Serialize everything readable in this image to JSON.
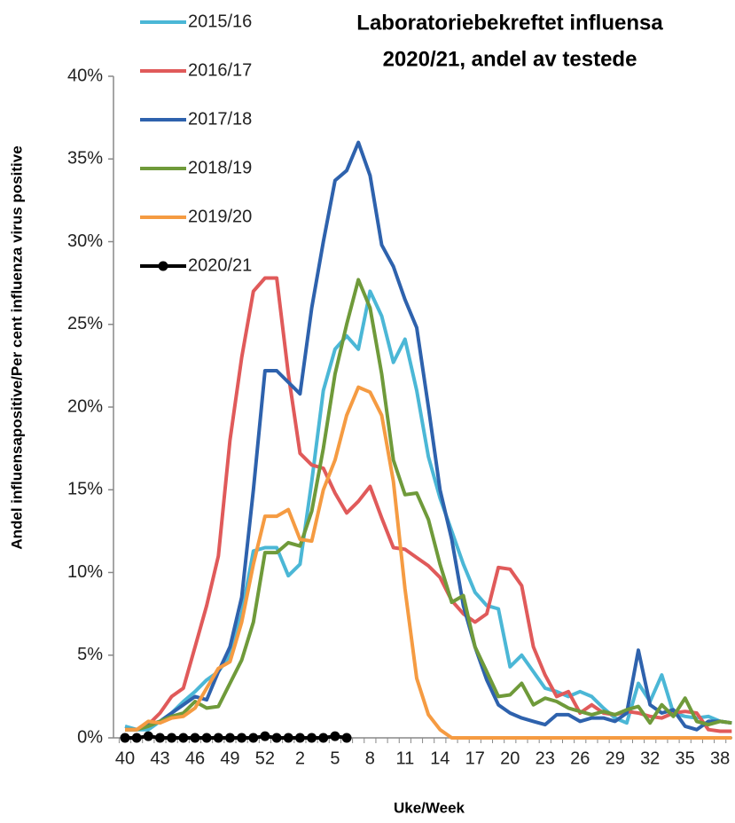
{
  "chart_data": {
    "type": "line",
    "title": [
      "Laboratoriebekreftet influensa",
      "2020/21, andel av testede"
    ],
    "y_label": "Andel influensapositive/Per cent influenza virus positive",
    "x_label": "Uke/Week",
    "categories": [
      "40",
      null,
      null,
      "43",
      null,
      null,
      "46",
      null,
      null,
      "49",
      null,
      null,
      "52",
      null,
      null,
      "2",
      null,
      null,
      "5",
      null,
      null,
      "8",
      null,
      null,
      "11",
      null,
      null,
      "14",
      null,
      null,
      "17",
      null,
      null,
      "20",
      null,
      null,
      "23",
      null,
      null,
      "26",
      null,
      null,
      "29",
      null,
      null,
      "32",
      null,
      null,
      "35",
      null,
      null,
      "38",
      null
    ],
    "ylim": [
      0,
      40
    ],
    "yticks": [
      {
        "value": 0,
        "label": "0%"
      },
      {
        "value": 5,
        "label": "5%"
      },
      {
        "value": 10,
        "label": "10%"
      },
      {
        "value": 15,
        "label": "15%"
      },
      {
        "value": 20,
        "label": "20%"
      },
      {
        "value": 25,
        "label": "25%"
      },
      {
        "value": 30,
        "label": "30%"
      },
      {
        "value": 35,
        "label": "35%"
      },
      {
        "value": 40,
        "label": "40%"
      }
    ],
    "series": [
      {
        "name": "2015/16",
        "color": "#4bb7d6",
        "values": [
          0.7,
          0.5,
          0.5,
          1,
          1.5,
          2.2,
          2.8,
          3.5,
          4,
          5,
          7.5,
          11.3,
          11.5,
          11.5,
          9.8,
          10.5,
          15.5,
          21,
          23.5,
          24.3,
          23.5,
          27,
          25.5,
          22.7,
          24.1,
          21,
          17,
          14.5,
          12.5,
          10.5,
          8.8,
          8,
          7.8,
          4.3,
          5,
          4,
          3,
          2.8,
          2.5,
          2.8,
          2.5,
          1.8,
          1.2,
          0.9,
          3.3,
          2.2,
          3.8,
          1.5,
          1.3,
          1.2,
          1.3,
          1,
          0.9
        ]
      },
      {
        "name": "2016/17",
        "color": "#e05a5a",
        "values": [
          0.5,
          0.5,
          0.8,
          1.5,
          2.5,
          3,
          5.5,
          8,
          11,
          18,
          23,
          27,
          27.8,
          27.8,
          22,
          17.2,
          16.5,
          16.3,
          14.8,
          13.6,
          14.3,
          15.2,
          13.3,
          11.5,
          11.4,
          10.9,
          10.4,
          9.7,
          8.3,
          7.5,
          7,
          7.5,
          10.3,
          10.2,
          9.2,
          5.5,
          3.8,
          2.5,
          2.8,
          1.5,
          2,
          1.5,
          1.4,
          1.6,
          1.5,
          1.3,
          1.2,
          1.5,
          1.6,
          1.5,
          0.5,
          0.4,
          0.4
        ]
      },
      {
        "name": "2017/18",
        "color": "#2e62ad",
        "values": [
          0.5,
          0.5,
          0.8,
          1,
          1.5,
          2,
          2.5,
          2.3,
          4,
          5.5,
          8.5,
          15,
          22.2,
          22.2,
          21.5,
          20.8,
          26,
          30,
          33.7,
          34.3,
          36,
          34,
          29.8,
          28.5,
          26.5,
          24.8,
          20,
          15,
          12,
          8,
          5.5,
          3.5,
          2,
          1.5,
          1.2,
          1,
          0.8,
          1.4,
          1.4,
          1,
          1.2,
          1.2,
          1,
          1.5,
          5.3,
          2,
          1.5,
          1.7,
          0.7,
          0.5,
          1,
          1,
          0.9
        ]
      },
      {
        "name": "2018/19",
        "color": "#6f9a3a",
        "values": [
          0.5,
          0.5,
          0.7,
          1,
          1.3,
          1.5,
          2.2,
          1.8,
          1.9,
          3.3,
          4.7,
          7,
          11.2,
          11.2,
          11.8,
          11.6,
          13.7,
          17.5,
          22,
          25,
          27.7,
          26,
          22,
          16.8,
          14.7,
          14.8,
          13.2,
          10.5,
          8.2,
          8.6,
          5.5,
          4,
          2.5,
          2.6,
          3.3,
          2,
          2.4,
          2.2,
          1.8,
          1.6,
          1.4,
          1.6,
          1.4,
          1.7,
          1.9,
          0.9,
          2,
          1.3,
          2.4,
          1,
          0.8,
          1,
          0.9
        ]
      },
      {
        "name": "2019/20",
        "color": "#f59b42",
        "values": [
          0.5,
          0.5,
          1,
          0.9,
          1.2,
          1.3,
          1.8,
          3,
          4.2,
          4.6,
          7,
          10.5,
          13.4,
          13.4,
          13.8,
          12,
          11.9,
          15,
          16.8,
          19.5,
          21.2,
          20.9,
          19.5,
          15.5,
          9,
          3.6,
          1.4,
          0.5,
          0,
          0,
          0,
          0,
          0,
          0,
          0,
          0,
          0,
          0,
          0,
          0,
          0,
          0,
          0,
          0,
          0,
          0,
          0,
          0,
          0,
          0,
          0,
          0,
          0
        ]
      },
      {
        "name": "2020/21",
        "color": "#000000",
        "marker": "circle",
        "values": [
          0,
          0,
          0.1,
          0,
          0,
          0,
          0,
          0,
          0,
          0,
          0,
          0,
          0.1,
          0,
          0,
          0,
          0,
          0,
          0.1,
          0,
          null,
          null,
          null,
          null,
          null,
          null,
          null,
          null,
          null,
          null,
          null,
          null,
          null,
          null,
          null,
          null,
          null,
          null,
          null,
          null,
          null,
          null,
          null,
          null,
          null,
          null,
          null,
          null,
          null,
          null,
          null,
          null,
          null
        ]
      }
    ]
  }
}
